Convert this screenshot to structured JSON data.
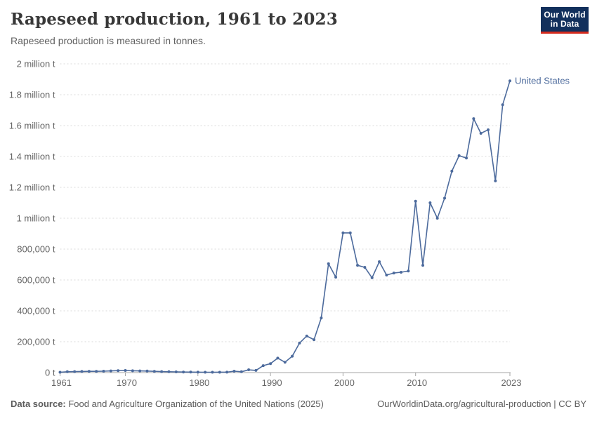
{
  "header": {
    "title": "Rapeseed production, 1961 to 2023",
    "subtitle": "Rapeseed production is measured in tonnes.",
    "logo": {
      "line1": "Our World",
      "line2": "in Data"
    }
  },
  "chart_data": {
    "type": "line",
    "title": "Rapeseed production, 1961 to 2023",
    "xlabel": "",
    "ylabel": "",
    "unit": "tonnes",
    "grid": "horizontal-dashed",
    "legend_position": "end-of-line",
    "xlim": [
      1961,
      2023
    ],
    "ylim": [
      0,
      2000000
    ],
    "x_ticks": [
      1961,
      1970,
      1980,
      1990,
      2000,
      2010,
      2023
    ],
    "y_ticks": [
      {
        "value": 0,
        "label": "0 t"
      },
      {
        "value": 200000,
        "label": "200,000 t"
      },
      {
        "value": 400000,
        "label": "400,000 t"
      },
      {
        "value": 600000,
        "label": "600,000 t"
      },
      {
        "value": 800000,
        "label": "800,000 t"
      },
      {
        "value": 1000000,
        "label": "1 million t"
      },
      {
        "value": 1200000,
        "label": "1.2 million t"
      },
      {
        "value": 1400000,
        "label": "1.4 million t"
      },
      {
        "value": 1600000,
        "label": "1.6 million t"
      },
      {
        "value": 1800000,
        "label": "1.8 million t"
      },
      {
        "value": 2000000,
        "label": "2 million t"
      }
    ],
    "x": [
      1961,
      1962,
      1963,
      1964,
      1965,
      1966,
      1967,
      1968,
      1969,
      1970,
      1971,
      1972,
      1973,
      1974,
      1975,
      1976,
      1977,
      1978,
      1979,
      1980,
      1981,
      1982,
      1983,
      1984,
      1985,
      1986,
      1987,
      1988,
      1989,
      1990,
      1991,
      1992,
      1993,
      1994,
      1995,
      1996,
      1997,
      1998,
      1999,
      2000,
      2001,
      2002,
      2003,
      2004,
      2005,
      2006,
      2007,
      2008,
      2009,
      2010,
      2011,
      2012,
      2013,
      2014,
      2015,
      2016,
      2017,
      2018,
      2019,
      2020,
      2021,
      2022,
      2023
    ],
    "series": [
      {
        "name": "United States",
        "color": "#4c6a9c",
        "values": [
          2300,
          5400,
          6400,
          7300,
          8200,
          8200,
          9100,
          10900,
          12700,
          13600,
          11800,
          10900,
          10000,
          8200,
          6400,
          5400,
          4500,
          3600,
          3200,
          2700,
          2300,
          2000,
          2500,
          2800,
          9100,
          5400,
          18000,
          14000,
          45000,
          58000,
          94000,
          67000,
          106000,
          191000,
          237000,
          213000,
          354000,
          705000,
          618000,
          905000,
          905000,
          695000,
          682000,
          614000,
          718000,
          632000,
          645000,
          650000,
          658000,
          1110000,
          695000,
          1100000,
          1000000,
          1130000,
          1305000,
          1405000,
          1390000,
          1645000,
          1550000,
          1573000,
          1242000,
          1735000,
          1890000
        ]
      }
    ],
    "colors": {
      "grid": "#dadada",
      "axis": "#a5a5a5",
      "tick_text": "#666666"
    }
  },
  "footer": {
    "datasource_label": "Data source:",
    "datasource_text": " Food and Agriculture Organization of the United Nations (2025)",
    "link": "OurWorldinData.org/agricultural-production | CC BY"
  }
}
